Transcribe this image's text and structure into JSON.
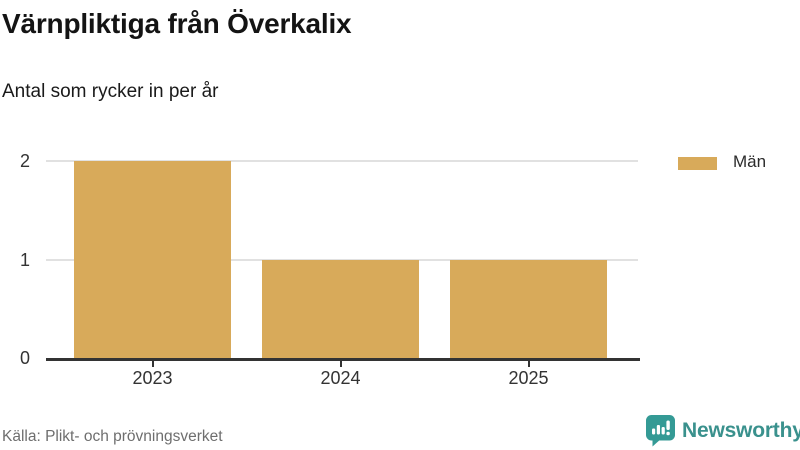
{
  "header": {
    "title": "Värnpliktiga från Överkalix",
    "subtitle": "Antal som rycker in per år"
  },
  "legend": {
    "items": [
      {
        "label": "Män",
        "color": "#d8aa5a"
      }
    ]
  },
  "footer": {
    "source": "Källa: Plikt- och prövningsverket",
    "brand": "Newsworthy",
    "brand_color": "#3a918d"
  },
  "chart_data": {
    "type": "bar",
    "title": "Värnpliktiga från Överkalix",
    "subtitle": "Antal som rycker in per år",
    "categories": [
      "2023",
      "2024",
      "2025"
    ],
    "series": [
      {
        "name": "Män",
        "values": [
          2,
          1,
          1
        ],
        "color": "#d8aa5a"
      }
    ],
    "xlabel": "",
    "ylabel": "",
    "ylim": [
      0,
      2
    ],
    "yticks": [
      0,
      1,
      2
    ],
    "grid": "horizontal",
    "legend_position": "top-right",
    "source": "Källa: Plikt- och prövningsverket"
  }
}
